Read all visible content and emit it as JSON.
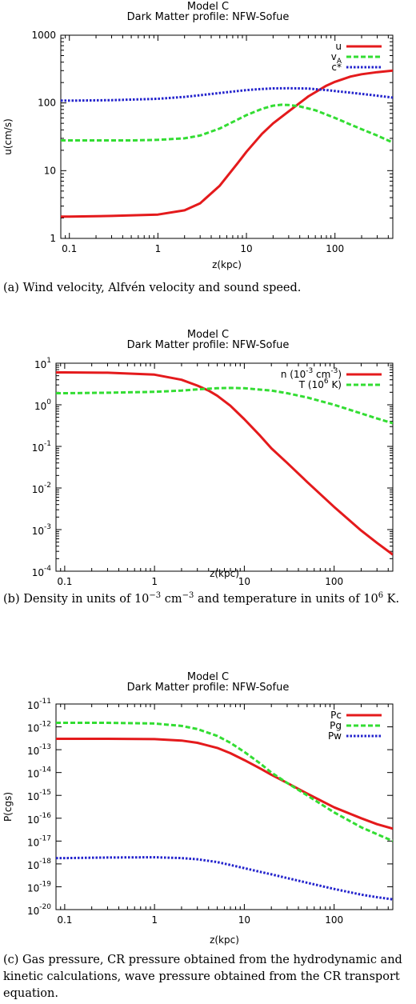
{
  "chart_data": [
    {
      "type": "line",
      "title": "Model C",
      "subtitle": "Dark Matter profile: NFW-Sofue",
      "xlabel": "z(kpc)",
      "ylabel": "u(cm/s)",
      "xscale": "log",
      "yscale": "log",
      "xlim": [
        0.08,
        450
      ],
      "ylim": [
        1,
        1000
      ],
      "xticks": [
        "0.1",
        "1",
        "10",
        "100"
      ],
      "yticks": [
        "1",
        "10",
        "100",
        "1000"
      ],
      "legend_position": "top-right",
      "grid": false,
      "series": [
        {
          "name": "u",
          "color": "#e41a1c",
          "style": "solid",
          "x": [
            0.08,
            0.1,
            0.3,
            1,
            2,
            3,
            5,
            8,
            10,
            15,
            20,
            30,
            50,
            80,
            100,
            150,
            200,
            300,
            450
          ],
          "y": [
            2.1,
            2.1,
            2.15,
            2.25,
            2.6,
            3.3,
            6,
            13,
            19,
            35,
            50,
            75,
            125,
            180,
            205,
            245,
            265,
            285,
            300
          ]
        },
        {
          "name": "v",
          "name_sub": "A",
          "color": "#33dd33",
          "style": "dashed",
          "x": [
            0.08,
            0.1,
            0.3,
            0.5,
            1,
            2,
            3,
            5,
            8,
            10,
            15,
            20,
            25,
            30,
            40,
            60,
            100,
            150,
            200,
            300,
            450
          ],
          "y": [
            28,
            28,
            28,
            28,
            28.5,
            30,
            33,
            42,
            57,
            66,
            82,
            91,
            94,
            93,
            89,
            78,
            60,
            48,
            41,
            33,
            26
          ]
        },
        {
          "name": "c*",
          "color": "#2222cc",
          "style": "dotted",
          "x": [
            0.08,
            0.1,
            0.3,
            1,
            2,
            3,
            5,
            10,
            15,
            20,
            30,
            50,
            80,
            100,
            150,
            200,
            300,
            450
          ],
          "y": [
            108,
            108,
            110,
            115,
            123,
            130,
            140,
            155,
            161,
            164,
            165,
            163,
            155,
            150,
            142,
            136,
            128,
            120
          ]
        }
      ]
    },
    {
      "type": "line",
      "title": "Model C",
      "subtitle": "Dark Matter profile: NFW-Sofue",
      "xlabel": "z(kpc)",
      "ylabel": "",
      "xscale": "log",
      "yscale": "log",
      "xlim": [
        0.08,
        450
      ],
      "ylim": [
        0.0001,
        10
      ],
      "xticks": [
        "0.1",
        "1",
        "10",
        "100"
      ],
      "yticks": [
        {
          "base": "10",
          "exp": "-4"
        },
        {
          "base": "10",
          "exp": "-3"
        },
        {
          "base": "10",
          "exp": "-2"
        },
        {
          "base": "10",
          "exp": "-1"
        },
        {
          "base": "10",
          "exp": "0"
        },
        {
          "base": "10",
          "exp": "1"
        }
      ],
      "legend_position": "top-right",
      "grid": false,
      "series": [
        {
          "name": "n (10",
          "name_exp": "-3",
          "name_tail": " cm",
          "name_exp2": "-3",
          "name_end": ")",
          "color": "#e41a1c",
          "style": "solid",
          "x": [
            0.08,
            0.1,
            0.3,
            1,
            2,
            3,
            4,
            5,
            7,
            10,
            15,
            20,
            30,
            50,
            100,
            200,
            300,
            450
          ],
          "y": [
            6.0,
            6.0,
            5.9,
            5.3,
            4.0,
            2.9,
            2.2,
            1.65,
            0.95,
            0.45,
            0.18,
            0.09,
            0.04,
            0.014,
            0.0035,
            0.00095,
            0.00048,
            0.00025
          ]
        },
        {
          "name": "T (10",
          "name_exp": "6",
          "name_tail": " K)",
          "color": "#33dd33",
          "style": "dashed",
          "x": [
            0.08,
            0.1,
            0.3,
            1,
            2,
            3,
            5,
            7,
            10,
            20,
            30,
            50,
            100,
            200,
            300,
            450
          ],
          "y": [
            1.9,
            1.9,
            1.95,
            2.05,
            2.2,
            2.35,
            2.5,
            2.55,
            2.5,
            2.2,
            1.9,
            1.5,
            1.0,
            0.62,
            0.47,
            0.36
          ]
        }
      ]
    },
    {
      "type": "line",
      "title": "Model C",
      "subtitle": "Dark Matter profile: NFW-Sofue",
      "xlabel": "z(kpc)",
      "ylabel": "P(cgs)",
      "xscale": "log",
      "yscale": "log",
      "xlim": [
        0.08,
        450
      ],
      "ylim": [
        1e-20,
        1e-11
      ],
      "xticks": [
        "0.1",
        "1",
        "10",
        "100"
      ],
      "yticks": [
        {
          "base": "10",
          "exp": "-20"
        },
        {
          "base": "10",
          "exp": "-19"
        },
        {
          "base": "10",
          "exp": "-18"
        },
        {
          "base": "10",
          "exp": "-17"
        },
        {
          "base": "10",
          "exp": "-16"
        },
        {
          "base": "10",
          "exp": "-15"
        },
        {
          "base": "10",
          "exp": "-14"
        },
        {
          "base": "10",
          "exp": "-13"
        },
        {
          "base": "10",
          "exp": "-12"
        },
        {
          "base": "10",
          "exp": "-11"
        }
      ],
      "legend_position": "top-right",
      "grid": false,
      "series": [
        {
          "name": "Pc",
          "color": "#e41a1c",
          "style": "solid",
          "x": [
            0.08,
            0.1,
            0.3,
            1,
            2,
            3,
            5,
            7,
            10,
            15,
            20,
            30,
            50,
            100,
            200,
            300,
            450
          ],
          "y": [
            3e-13,
            3e-13,
            3e-13,
            2.9e-13,
            2.5e-13,
            2e-13,
            1.2e-13,
            7e-14,
            3.5e-14,
            1.5e-14,
            8e-15,
            3.5e-15,
            1.2e-15,
            3e-16,
            1e-16,
            5.5e-17,
            3.5e-17
          ]
        },
        {
          "name": "Pg",
          "color": "#33dd33",
          "style": "dashed",
          "x": [
            0.08,
            0.1,
            0.3,
            1,
            2,
            3,
            5,
            7,
            10,
            15,
            20,
            30,
            50,
            100,
            200,
            300,
            450
          ],
          "y": [
            1.5e-12,
            1.5e-12,
            1.5e-12,
            1.4e-12,
            1.1e-12,
            8e-13,
            4e-13,
            2e-13,
            8e-14,
            2.5e-14,
            1e-14,
            3.5e-15,
            1e-15,
            1.8e-16,
            4e-17,
            2e-17,
            1e-17
          ]
        },
        {
          "name": "Pw",
          "color": "#2222cc",
          "style": "dotted",
          "x": [
            0.08,
            0.1,
            0.3,
            1,
            2,
            3,
            5,
            7,
            10,
            15,
            20,
            30,
            50,
            100,
            200,
            300,
            450
          ],
          "y": [
            1.8e-18,
            1.8e-18,
            1.9e-18,
            1.95e-18,
            1.8e-18,
            1.6e-18,
            1.2e-18,
            9e-19,
            6.5e-19,
            4.5e-19,
            3.5e-19,
            2.4e-19,
            1.5e-19,
            8e-20,
            4.5e-20,
            3.5e-20,
            2.8e-20
          ]
        }
      ]
    }
  ],
  "captions": [
    "(a) Wind velocity, Alfvén velocity and sound speed.",
    "(b) Density in units of 10",
    "−3",
    " cm",
    "−3",
    " and temperature in units of 10",
    "6",
    " K.",
    "(c) Gas pressure, CR pressure obtained from the hydrodynamic and kinetic calculations, wave pressure obtained from the CR transport equation."
  ]
}
